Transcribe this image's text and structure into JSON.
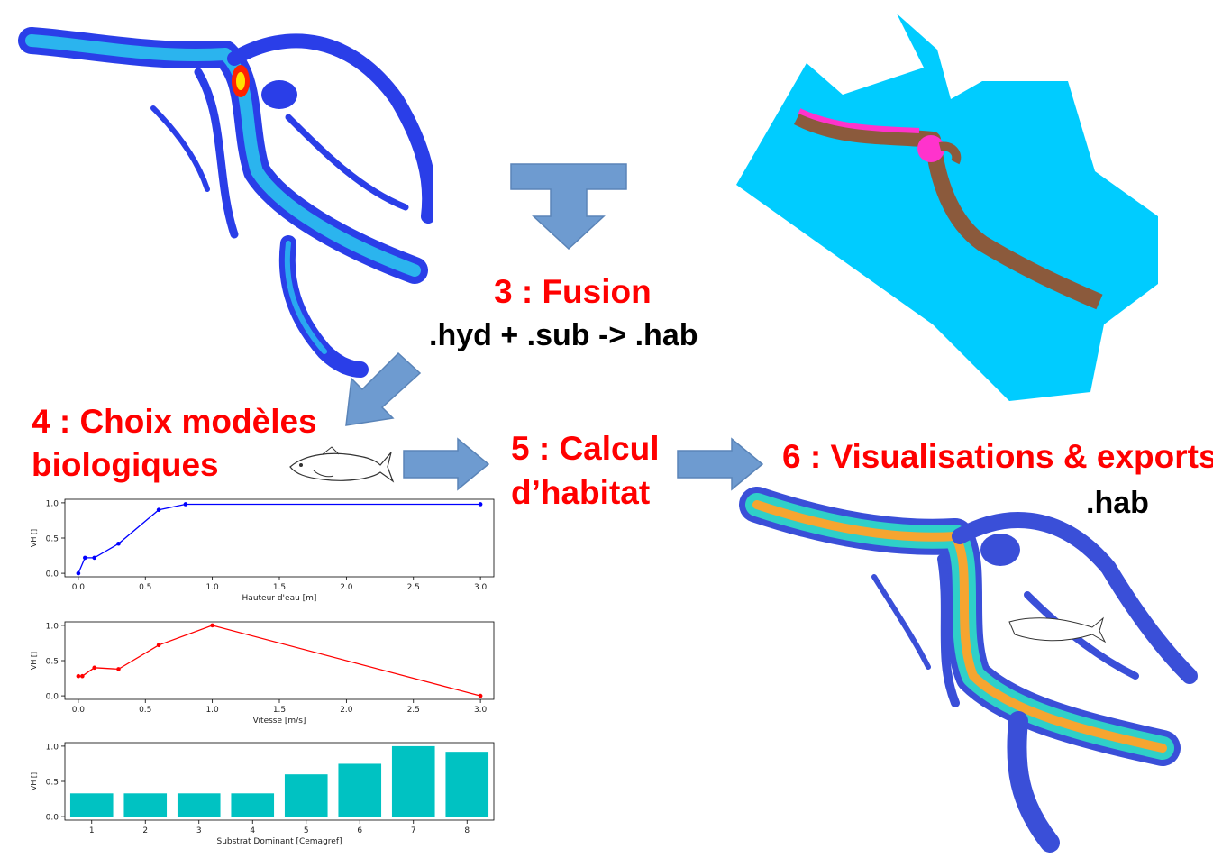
{
  "steps": {
    "fusion": {
      "title": "3 : Fusion",
      "formula": ".hyd + .sub -> .hab"
    },
    "models": {
      "title_line1": "4 : Choix modèles",
      "title_line2": "biologiques"
    },
    "habitat": {
      "title_line1": "5 : Calcul",
      "title_line2": "d’habitat"
    },
    "visual": {
      "title": "6 : Visualisations & exports",
      "ext": ".hab"
    }
  },
  "colors": {
    "title": "#ff0000",
    "arrow": "#6e9bd0",
    "substrate_water": "#00ccff",
    "substrate_channel": "#8b5a3c",
    "substrate_magenta": "#ff33cc",
    "bar": "#00c2c2",
    "line_depth": "#0000ff",
    "line_velocity": "#ff0000"
  },
  "chart_data": [
    {
      "type": "line",
      "xlabel": "Hauteur d'eau [m]",
      "ylabel": "VH []",
      "x": [
        0.0,
        0.05,
        0.12,
        0.3,
        0.6,
        0.8,
        3.0
      ],
      "y": [
        0.0,
        0.22,
        0.22,
        0.42,
        0.9,
        0.98,
        0.98
      ],
      "xlim": [
        -0.1,
        3.1
      ],
      "ylim": [
        -0.05,
        1.05
      ],
      "xticks": [
        "0.0",
        "0.5",
        "1.0",
        "1.5",
        "2.0",
        "2.5",
        "3.0"
      ],
      "yticks": [
        "0.0",
        "0.5",
        "1.0"
      ]
    },
    {
      "type": "line",
      "xlabel": "Vitesse [m/s]",
      "ylabel": "VH []",
      "x": [
        0.0,
        0.03,
        0.12,
        0.3,
        0.6,
        1.0,
        3.0
      ],
      "y": [
        0.28,
        0.28,
        0.4,
        0.38,
        0.72,
        1.0,
        0.0
      ],
      "xlim": [
        -0.1,
        3.1
      ],
      "ylim": [
        -0.05,
        1.05
      ],
      "xticks": [
        "0.0",
        "0.5",
        "1.0",
        "1.5",
        "2.0",
        "2.5",
        "3.0"
      ],
      "yticks": [
        "0.0",
        "0.5",
        "1.0"
      ]
    },
    {
      "type": "bar",
      "xlabel": "Substrat Dominant [Cemagref]",
      "ylabel": "VH []",
      "categories": [
        "1",
        "2",
        "3",
        "4",
        "5",
        "6",
        "7",
        "8"
      ],
      "values": [
        0.33,
        0.33,
        0.33,
        0.33,
        0.6,
        0.75,
        1.0,
        0.92
      ],
      "ylim": [
        -0.05,
        1.05
      ],
      "yticks": [
        "0.0",
        "0.5",
        "1.0"
      ]
    }
  ]
}
